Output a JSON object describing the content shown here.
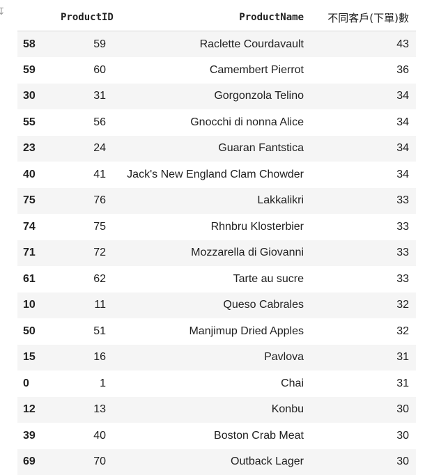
{
  "table": {
    "columns": [
      "ProductID",
      "ProductName",
      "不同客戶(下單)數"
    ],
    "rows": [
      {
        "index": "58",
        "product_id": "59",
        "product_name": "Raclette Courdavault",
        "count": "43"
      },
      {
        "index": "59",
        "product_id": "60",
        "product_name": "Camembert Pierrot",
        "count": "36"
      },
      {
        "index": "30",
        "product_id": "31",
        "product_name": "Gorgonzola Telino",
        "count": "34"
      },
      {
        "index": "55",
        "product_id": "56",
        "product_name": "Gnocchi di nonna Alice",
        "count": "34"
      },
      {
        "index": "23",
        "product_id": "24",
        "product_name": "Guaran Fantstica",
        "count": "34"
      },
      {
        "index": "40",
        "product_id": "41",
        "product_name": "Jack's New England Clam Chowder",
        "count": "34"
      },
      {
        "index": "75",
        "product_id": "76",
        "product_name": "Lakkalikri",
        "count": "33"
      },
      {
        "index": "74",
        "product_id": "75",
        "product_name": "Rhnbru Klosterbier",
        "count": "33"
      },
      {
        "index": "71",
        "product_id": "72",
        "product_name": "Mozzarella di Giovanni",
        "count": "33"
      },
      {
        "index": "61",
        "product_id": "62",
        "product_name": "Tarte au sucre",
        "count": "33"
      },
      {
        "index": "10",
        "product_id": "11",
        "product_name": "Queso Cabrales",
        "count": "32"
      },
      {
        "index": "50",
        "product_id": "51",
        "product_name": "Manjimup Dried Apples",
        "count": "32"
      },
      {
        "index": "15",
        "product_id": "16",
        "product_name": "Pavlova",
        "count": "31"
      },
      {
        "index": "0",
        "product_id": "1",
        "product_name": "Chai",
        "count": "31"
      },
      {
        "index": "12",
        "product_id": "13",
        "product_name": "Konbu",
        "count": "30"
      },
      {
        "index": "39",
        "product_id": "40",
        "product_name": "Boston Crab Meat",
        "count": "30"
      },
      {
        "index": "69",
        "product_id": "70",
        "product_name": "Outback Lager",
        "count": "30"
      }
    ]
  },
  "icons": {
    "corner": "partial-glyph-icon"
  },
  "colors": {
    "stripe": "#f5f5f5",
    "header_rule": "#d8d8d8",
    "text": "#212121"
  }
}
